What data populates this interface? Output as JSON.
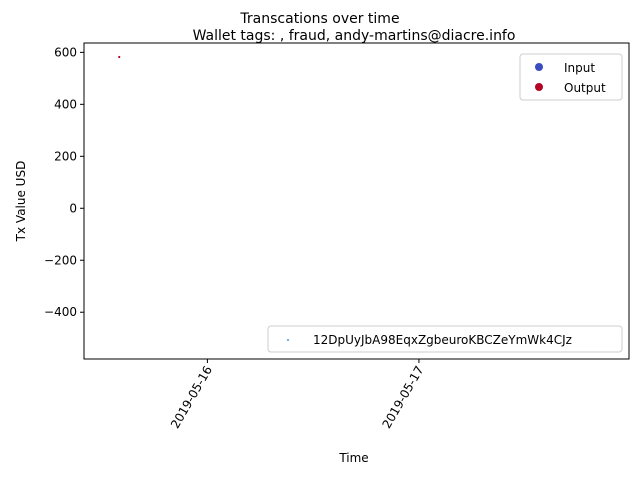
{
  "figure": {
    "suptitle": "Transcations over time"
  },
  "chart_data": {
    "type": "scatter",
    "title": "Wallet tags: , fraud, andy-martins@diacre.info",
    "xlabel": "Time",
    "ylabel": "Tx Value USD",
    "x_axis": {
      "kind": "date",
      "range": [
        "2019-05-15 10:00",
        "2019-05-17 23:50"
      ],
      "ticks": [
        {
          "value": "2019-05-16",
          "label": "2019-05-16"
        },
        {
          "value": "2019-05-17",
          "label": "2019-05-17"
        }
      ],
      "tick_label_rotation": "60"
    },
    "y_axis": {
      "range": [
        -580,
        636
      ],
      "ticks": [
        {
          "value": 600,
          "label": "600"
        },
        {
          "value": 400,
          "label": "400"
        },
        {
          "value": 200,
          "label": "200"
        },
        {
          "value": 0,
          "label": "0"
        },
        {
          "value": -200,
          "label": "−200"
        },
        {
          "value": -400,
          "label": "−400"
        }
      ]
    },
    "grid": false,
    "series": [
      {
        "name": "12DpUyJbA98EqxZgbeuroKBCZeYmWk4CJz",
        "color": "#1f77b4",
        "points": []
      }
    ],
    "points": [
      {
        "x": "2019-05-15 14:00",
        "y": 582,
        "direction": "Output",
        "color": "#b40426"
      }
    ],
    "direction_legend": {
      "placement": "top-right",
      "entries": [
        {
          "label": "Input",
          "color": "#3b4cc0"
        },
        {
          "label": "Output",
          "color": "#b40426"
        }
      ]
    },
    "series_legend": {
      "placement": "lower-right"
    }
  }
}
